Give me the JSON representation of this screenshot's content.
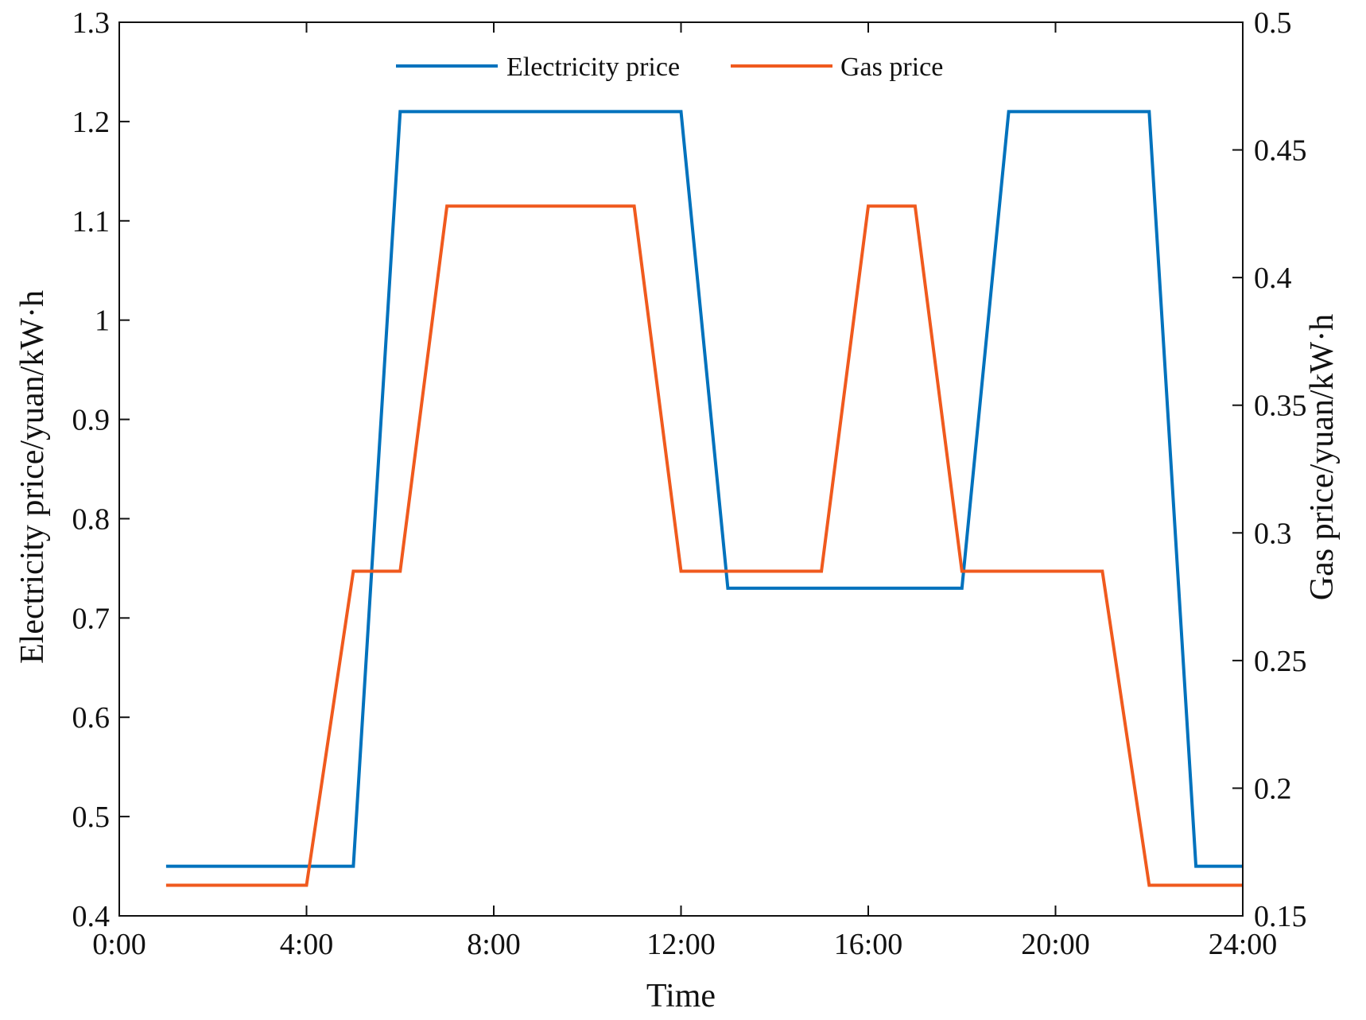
{
  "chart_data": {
    "type": "line",
    "xlabel": "Time",
    "ylabel_left": "Electricity price/yuan/kW·h",
    "ylabel_right": "Gas price/yuan/kW·h",
    "xlim": [
      0,
      24
    ],
    "ylim_left": [
      0.4,
      1.3
    ],
    "ylim_right": [
      0.15,
      0.5
    ],
    "x_ticks": [
      0,
      4,
      8,
      12,
      16,
      20,
      24
    ],
    "x_tick_labels": [
      "0:00",
      "4:00",
      "8:00",
      "12:00",
      "16:00",
      "20:00",
      "24:00"
    ],
    "y_left_ticks": [
      0.4,
      0.5,
      0.6,
      0.7,
      0.8,
      0.9,
      1,
      1.1,
      1.2,
      1.3
    ],
    "y_left_tick_labels": [
      "0.4",
      "0.5",
      "0.6",
      "0.7",
      "0.8",
      "0.9",
      "1",
      "1.1",
      "1.2",
      "1.3"
    ],
    "y_right_ticks": [
      0.15,
      0.2,
      0.25,
      0.3,
      0.35,
      0.4,
      0.45,
      0.5
    ],
    "y_right_tick_labels": [
      "0.15",
      "0.2",
      "0.25",
      "0.3",
      "0.35",
      "0.4",
      "0.45",
      "0.5"
    ],
    "grid": false,
    "legend_position": "top-center",
    "series": [
      {
        "name": "Electricity price",
        "axis": "left",
        "color": "#0072BD",
        "x": [
          1,
          2,
          3,
          4,
          5,
          6,
          7,
          8,
          9,
          10,
          11,
          12,
          13,
          14,
          15,
          16,
          17,
          18,
          19,
          20,
          21,
          22,
          23,
          24
        ],
        "y": [
          0.45,
          0.45,
          0.45,
          0.45,
          0.45,
          1.21,
          1.21,
          1.21,
          1.21,
          1.21,
          1.21,
          1.21,
          0.73,
          0.73,
          0.73,
          0.73,
          0.73,
          0.73,
          1.21,
          1.21,
          1.21,
          1.21,
          0.45,
          0.45
        ]
      },
      {
        "name": "Gas price",
        "axis": "right",
        "color": "#F05A1E",
        "x": [
          1,
          2,
          3,
          4,
          5,
          6,
          7,
          8,
          9,
          10,
          11,
          12,
          13,
          14,
          15,
          16,
          17,
          18,
          19,
          20,
          21,
          22,
          23,
          24
        ],
        "y": [
          0.162,
          0.162,
          0.162,
          0.162,
          0.285,
          0.285,
          0.428,
          0.428,
          0.428,
          0.428,
          0.428,
          0.285,
          0.285,
          0.285,
          0.285,
          0.428,
          0.428,
          0.285,
          0.285,
          0.285,
          0.285,
          0.162,
          0.162,
          0.162
        ]
      }
    ]
  }
}
